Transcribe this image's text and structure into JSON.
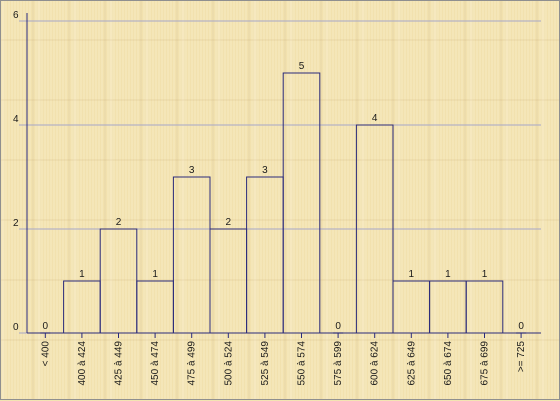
{
  "chart_data": {
    "type": "bar",
    "title": "",
    "xlabel": "",
    "ylabel": "",
    "ylim": [
      0,
      6
    ],
    "yticks": [
      0,
      2,
      4,
      6
    ],
    "grid": true,
    "categories": [
      "< 400",
      "400 à 424",
      "425 à 449",
      "450 à 474",
      "475 à 499",
      "500 à 524",
      "525 à 549",
      "550 à 574",
      "575 à 599",
      "600 à 624",
      "625 à 649",
      "650 à 674",
      "675 à 699",
      ">= 725"
    ],
    "values": [
      0,
      1,
      2,
      1,
      3,
      2,
      3,
      5,
      0,
      4,
      1,
      1,
      1,
      0
    ],
    "value_labels": [
      "0",
      "1",
      "2",
      "1",
      "3",
      "2",
      "3",
      "5",
      "0",
      "4",
      "1",
      "1",
      "1",
      "0"
    ],
    "colors": {
      "bar_stroke": "#2a2a7a",
      "grid": "#a6a7c8",
      "text": "#1a1a1a"
    }
  }
}
